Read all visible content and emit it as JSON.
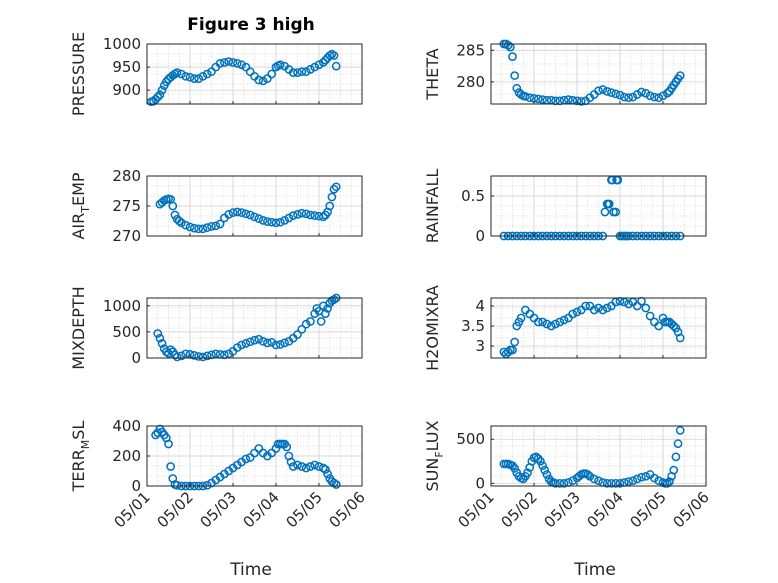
{
  "title": "Figure 3 high",
  "colors": {
    "marker": "#0072BD",
    "axis": "#262626",
    "grid": "#d2d2d2"
  },
  "chart_data": [
    {
      "type": "scatter",
      "id": "pressure",
      "ylabel": "PRESSURE",
      "ylim": [
        870,
        1000
      ],
      "yticks": [
        "900",
        "950",
        "1000"
      ],
      "ytick_values": [
        900,
        950,
        1000
      ],
      "xlim": [
        0,
        5
      ],
      "marker": "circle-open",
      "grid": true,
      "x": [
        0.1,
        0.15,
        0.2,
        0.25,
        0.3,
        0.35,
        0.4,
        0.45,
        0.5,
        0.55,
        0.6,
        0.65,
        0.7,
        0.8,
        0.9,
        1.0,
        1.1,
        1.2,
        1.3,
        1.4,
        1.5,
        1.6,
        1.7,
        1.8,
        1.9,
        2.0,
        2.1,
        2.2,
        2.3,
        2.4,
        2.5,
        2.6,
        2.7,
        2.8,
        2.9,
        3.0,
        3.05,
        3.1,
        3.2,
        3.3,
        3.4,
        3.5,
        3.6,
        3.7,
        3.8,
        3.9,
        4.0,
        4.1,
        4.15,
        4.2,
        4.25,
        4.3,
        4.35,
        4.4
      ],
      "y": [
        875,
        876,
        880,
        885,
        890,
        900,
        910,
        918,
        924,
        928,
        932,
        935,
        938,
        935,
        930,
        928,
        925,
        925,
        930,
        935,
        940,
        950,
        958,
        960,
        962,
        960,
        958,
        955,
        950,
        940,
        930,
        922,
        920,
        925,
        935,
        950,
        953,
        955,
        952,
        945,
        938,
        938,
        940,
        940,
        945,
        950,
        955,
        960,
        965,
        970,
        975,
        978,
        975,
        952
      ]
    },
    {
      "type": "scatter",
      "id": "theta",
      "ylabel": "THETA",
      "ylim": [
        276.5,
        286
      ],
      "yticks": [
        "280",
        "285"
      ],
      "ytick_values": [
        280,
        285
      ],
      "xlim": [
        0,
        5
      ],
      "marker": "circle-open",
      "grid": true,
      "x": [
        0.3,
        0.35,
        0.4,
        0.45,
        0.5,
        0.55,
        0.6,
        0.65,
        0.7,
        0.75,
        0.8,
        0.9,
        1.0,
        1.1,
        1.2,
        1.3,
        1.4,
        1.5,
        1.6,
        1.7,
        1.8,
        1.9,
        2.0,
        2.1,
        2.2,
        2.3,
        2.4,
        2.5,
        2.6,
        2.7,
        2.8,
        2.9,
        3.0,
        3.1,
        3.2,
        3.3,
        3.4,
        3.5,
        3.6,
        3.7,
        3.8,
        3.9,
        4.0,
        4.1,
        4.15,
        4.2,
        4.25,
        4.3,
        4.35,
        4.4
      ],
      "y": [
        286,
        286,
        285.8,
        285.5,
        284,
        281,
        279,
        278.3,
        278,
        277.8,
        277.7,
        277.5,
        277.4,
        277.3,
        277.2,
        277.1,
        277.1,
        277,
        277,
        277.1,
        277.2,
        277.1,
        277,
        276.9,
        277,
        277.5,
        278,
        278.6,
        278.8,
        278.5,
        278.3,
        278.1,
        277.9,
        277.6,
        277.5,
        277.6,
        278,
        278.4,
        278.2,
        277.8,
        277.6,
        277.5,
        277.8,
        278.2,
        278.5,
        279,
        279.5,
        280,
        280.5,
        281
      ]
    },
    {
      "type": "scatter",
      "id": "air_temp",
      "ylabel": "AIR",
      "ylabel_sub": "T",
      "ylabel_suffix": "EMP",
      "ylim": [
        270,
        280
      ],
      "yticks": [
        "270",
        "275",
        "280"
      ],
      "ytick_values": [
        270,
        275,
        280
      ],
      "xlim": [
        0,
        5
      ],
      "marker": "circle-open",
      "grid": true,
      "x": [
        0.3,
        0.35,
        0.4,
        0.45,
        0.5,
        0.55,
        0.6,
        0.65,
        0.7,
        0.75,
        0.8,
        0.9,
        1.0,
        1.1,
        1.2,
        1.3,
        1.4,
        1.5,
        1.6,
        1.7,
        1.8,
        1.9,
        2.0,
        2.1,
        2.2,
        2.3,
        2.4,
        2.5,
        2.6,
        2.7,
        2.8,
        2.9,
        3.0,
        3.1,
        3.2,
        3.3,
        3.4,
        3.5,
        3.6,
        3.7,
        3.8,
        3.9,
        4.0,
        4.1,
        4.15,
        4.2,
        4.25,
        4.3,
        4.35,
        4.4
      ],
      "y": [
        275.3,
        275.6,
        275.9,
        276.1,
        276.2,
        276.1,
        275,
        273.5,
        272.8,
        272.5,
        272.2,
        271.8,
        271.5,
        271.3,
        271.2,
        271.2,
        271.4,
        271.6,
        271.7,
        272,
        273,
        273.6,
        273.9,
        274,
        273.9,
        273.7,
        273.5,
        273.2,
        272.9,
        272.6,
        272.4,
        272.3,
        272.2,
        272.3,
        272.6,
        273,
        273.4,
        273.6,
        273.8,
        273.7,
        273.5,
        273.4,
        273.3,
        273.2,
        273.5,
        274,
        275,
        276.5,
        277.8,
        278.2
      ]
    },
    {
      "type": "scatter",
      "id": "rainfall",
      "ylabel": "RAINFALL",
      "ylim": [
        0,
        0.75
      ],
      "yticks": [
        "0",
        "0.5"
      ],
      "ytick_values": [
        0,
        0.5
      ],
      "xlim": [
        0,
        5
      ],
      "marker": "circle-open",
      "grid": true,
      "x": [
        0.3,
        0.4,
        0.5,
        0.6,
        0.7,
        0.8,
        0.9,
        1.0,
        1.1,
        1.2,
        1.3,
        1.4,
        1.5,
        1.6,
        1.7,
        1.8,
        1.9,
        2.0,
        2.1,
        2.2,
        2.3,
        2.4,
        2.5,
        2.6,
        2.65,
        2.7,
        2.72,
        2.75,
        2.8,
        2.82,
        2.85,
        2.9,
        2.92,
        2.95,
        3.0,
        3.05,
        3.1,
        3.15,
        3.2,
        3.3,
        3.4,
        3.5,
        3.6,
        3.7,
        3.8,
        3.9,
        4.0,
        4.1,
        4.2,
        4.3,
        4.4
      ],
      "y": [
        0,
        0,
        0,
        0,
        0,
        0,
        0,
        0,
        0,
        0,
        0,
        0,
        0,
        0,
        0,
        0,
        0,
        0,
        0,
        0,
        0,
        0,
        0,
        0,
        0.3,
        0.4,
        0.4,
        0.4,
        0.7,
        0.7,
        0.3,
        0.3,
        0.7,
        0.7,
        0,
        0,
        0,
        0,
        0,
        0,
        0,
        0,
        0,
        0,
        0,
        0,
        0,
        0,
        0,
        0,
        0
      ]
    },
    {
      "type": "scatter",
      "id": "mixdepth",
      "ylabel": "MIXDEPTH",
      "ylim": [
        0,
        1150
      ],
      "yticks": [
        "0",
        "500",
        "1000"
      ],
      "ytick_values": [
        0,
        500,
        1000
      ],
      "xlim": [
        0,
        5
      ],
      "marker": "circle-open",
      "grid": true,
      "x": [
        0.25,
        0.3,
        0.35,
        0.4,
        0.45,
        0.5,
        0.55,
        0.6,
        0.65,
        0.7,
        0.8,
        0.9,
        1.0,
        1.1,
        1.2,
        1.3,
        1.4,
        1.5,
        1.6,
        1.7,
        1.8,
        1.9,
        2.0,
        2.1,
        2.2,
        2.3,
        2.4,
        2.5,
        2.6,
        2.7,
        2.8,
        2.9,
        3.0,
        3.1,
        3.2,
        3.3,
        3.4,
        3.5,
        3.6,
        3.7,
        3.8,
        3.9,
        3.95,
        4.0,
        4.05,
        4.1,
        4.15,
        4.2,
        4.25,
        4.3,
        4.35,
        4.4
      ],
      "y": [
        470,
        380,
        280,
        180,
        120,
        90,
        160,
        120,
        60,
        20,
        40,
        80,
        70,
        50,
        30,
        20,
        40,
        60,
        80,
        70,
        60,
        80,
        130,
        200,
        250,
        280,
        310,
        340,
        360,
        320,
        290,
        300,
        250,
        260,
        290,
        320,
        380,
        450,
        550,
        650,
        700,
        850,
        950,
        900,
        700,
        1000,
        850,
        950,
        1050,
        1100,
        1120,
        1150
      ]
    },
    {
      "type": "scatter",
      "id": "h2omixra",
      "ylabel": "H2OMIXRA",
      "ylim": [
        2.7,
        4.2
      ],
      "yticks": [
        "3",
        "3.5",
        "4"
      ],
      "ytick_values": [
        3,
        3.5,
        4
      ],
      "xlim": [
        0,
        5
      ],
      "marker": "circle-open",
      "grid": true,
      "x": [
        0.3,
        0.35,
        0.4,
        0.45,
        0.5,
        0.55,
        0.6,
        0.65,
        0.7,
        0.8,
        0.9,
        1.0,
        1.1,
        1.2,
        1.3,
        1.4,
        1.5,
        1.6,
        1.7,
        1.8,
        1.9,
        2.0,
        2.1,
        2.2,
        2.3,
        2.4,
        2.5,
        2.6,
        2.7,
        2.8,
        2.9,
        3.0,
        3.1,
        3.2,
        3.3,
        3.4,
        3.5,
        3.6,
        3.7,
        3.8,
        3.9,
        4.0,
        4.05,
        4.1,
        4.15,
        4.2,
        4.25,
        4.3,
        4.35,
        4.4
      ],
      "y": [
        2.85,
        2.8,
        2.85,
        2.9,
        2.9,
        3.1,
        3.5,
        3.6,
        3.7,
        3.9,
        3.8,
        3.7,
        3.6,
        3.6,
        3.55,
        3.5,
        3.55,
        3.6,
        3.65,
        3.7,
        3.8,
        3.85,
        3.9,
        4.0,
        4.0,
        3.9,
        3.95,
        3.9,
        3.95,
        4.0,
        4.1,
        4.12,
        4.1,
        4.05,
        4.1,
        4.0,
        4.12,
        3.95,
        3.75,
        3.6,
        3.5,
        3.7,
        3.6,
        3.6,
        3.6,
        3.55,
        3.5,
        3.45,
        3.35,
        3.2
      ]
    },
    {
      "type": "scatter",
      "id": "terrain_msl",
      "ylabel": "TERR",
      "ylabel_sub": "M",
      "ylabel_suffix": "SL",
      "ylim": [
        0,
        400
      ],
      "yticks": [
        "0",
        "200",
        "400"
      ],
      "ytick_values": [
        0,
        200,
        400
      ],
      "xlim": [
        0,
        5
      ],
      "marker": "circle-open",
      "grid": true,
      "x": [
        0.2,
        0.25,
        0.3,
        0.35,
        0.4,
        0.45,
        0.5,
        0.55,
        0.6,
        0.65,
        0.7,
        0.8,
        0.9,
        1.0,
        1.1,
        1.2,
        1.3,
        1.4,
        1.5,
        1.6,
        1.7,
        1.8,
        1.9,
        2.0,
        2.1,
        2.2,
        2.3,
        2.4,
        2.5,
        2.6,
        2.7,
        2.8,
        2.9,
        3.0,
        3.05,
        3.1,
        3.15,
        3.2,
        3.25,
        3.3,
        3.35,
        3.4,
        3.5,
        3.6,
        3.7,
        3.8,
        3.9,
        4.0,
        4.1,
        4.15,
        4.2,
        4.25,
        4.3,
        4.35,
        4.4
      ],
      "y": [
        340,
        355,
        380,
        360,
        340,
        320,
        280,
        130,
        50,
        10,
        5,
        0,
        0,
        0,
        0,
        0,
        0,
        5,
        20,
        40,
        60,
        80,
        100,
        120,
        140,
        160,
        180,
        190,
        220,
        250,
        220,
        200,
        220,
        250,
        280,
        280,
        280,
        280,
        260,
        200,
        160,
        130,
        140,
        130,
        120,
        130,
        140,
        130,
        120,
        110,
        80,
        50,
        30,
        20,
        10
      ]
    },
    {
      "type": "scatter",
      "id": "sun_flux",
      "ylabel": "SUN",
      "ylabel_sub": "F",
      "ylabel_suffix": "LUX",
      "ylim": [
        -30,
        650
      ],
      "yticks": [
        "0",
        "500"
      ],
      "ytick_values": [
        0,
        500
      ],
      "xlim": [
        0,
        5
      ],
      "marker": "circle-open",
      "grid": true,
      "x": [
        0.3,
        0.35,
        0.4,
        0.45,
        0.5,
        0.55,
        0.6,
        0.65,
        0.7,
        0.75,
        0.8,
        0.85,
        0.9,
        0.95,
        1.0,
        1.05,
        1.1,
        1.15,
        1.2,
        1.25,
        1.3,
        1.35,
        1.4,
        1.45,
        1.5,
        1.6,
        1.7,
        1.8,
        1.9,
        2.0,
        2.05,
        2.1,
        2.15,
        2.2,
        2.25,
        2.3,
        2.4,
        2.5,
        2.6,
        2.7,
        2.8,
        2.9,
        3.0,
        3.1,
        3.2,
        3.3,
        3.4,
        3.5,
        3.6,
        3.7,
        3.8,
        3.9,
        4.0,
        4.05,
        4.1,
        4.15,
        4.2,
        4.25,
        4.3,
        4.35,
        4.4
      ],
      "y": [
        220,
        220,
        220,
        210,
        200,
        170,
        120,
        80,
        60,
        50,
        80,
        120,
        180,
        250,
        290,
        300,
        280,
        250,
        200,
        150,
        100,
        50,
        20,
        10,
        0,
        0,
        0,
        10,
        30,
        60,
        80,
        100,
        110,
        110,
        100,
        80,
        50,
        30,
        10,
        0,
        0,
        0,
        0,
        10,
        20,
        30,
        50,
        70,
        80,
        100,
        60,
        30,
        10,
        0,
        0,
        20,
        80,
        150,
        300,
        450,
        600
      ]
    }
  ],
  "xaxis": {
    "label": "Time",
    "ticks": [
      "05/01",
      "05/02",
      "05/03",
      "05/04",
      "05/05",
      "05/06"
    ],
    "tick_values": [
      0,
      1,
      2,
      3,
      4,
      5
    ]
  }
}
